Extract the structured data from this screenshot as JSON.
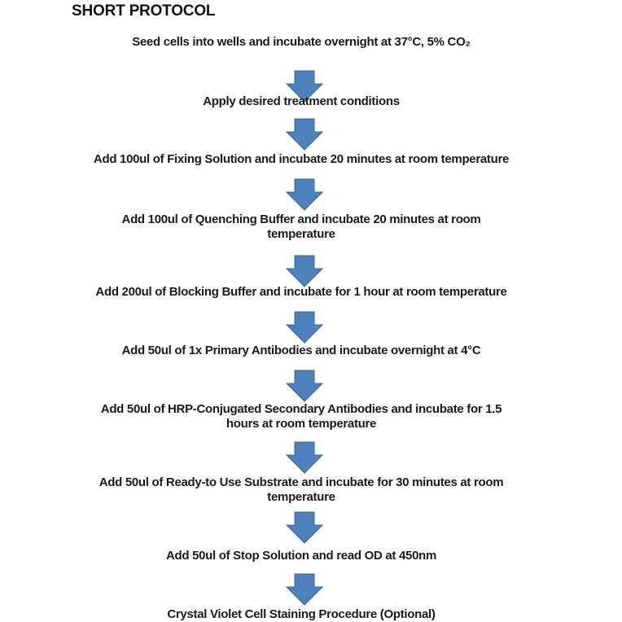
{
  "title": "SHORT PROTOCOL",
  "arrow_color": "#4f81bd",
  "arrow_border": "#3a6496",
  "steps": [
    {
      "lines": [
        "Seed cells into wells and incubate overnight at 37°C, 5% CO₂"
      ]
    },
    {
      "lines": [
        "Apply desired treatment conditions"
      ]
    },
    {
      "lines": [
        "Add 100ul of Fixing Solution and incubate 20 minutes at room temperature"
      ]
    },
    {
      "lines": [
        "Add 100ul of Quenching Buffer and incubate 20 minutes at room",
        "temperature"
      ]
    },
    {
      "lines": [
        "Add 200ul of Blocking Buffer and incubate for 1 hour at room temperature"
      ]
    },
    {
      "lines": [
        "Add 50ul of 1x Primary Antibodies and incubate overnight at 4°C"
      ]
    },
    {
      "lines": [
        "Add 50ul of HRP-Conjugated Secondary Antibodies and incubate for 1.5",
        "hours at room temperature"
      ]
    },
    {
      "lines": [
        "Add 50ul of Ready-to Use Substrate and incubate for 30 minutes at room",
        "temperature"
      ]
    },
    {
      "lines": [
        "Add 50ul of Stop Solution and read OD at 450nm"
      ]
    },
    {
      "lines": [
        "Crystal Violet Cell Staining Procedure (Optional)"
      ]
    }
  ]
}
